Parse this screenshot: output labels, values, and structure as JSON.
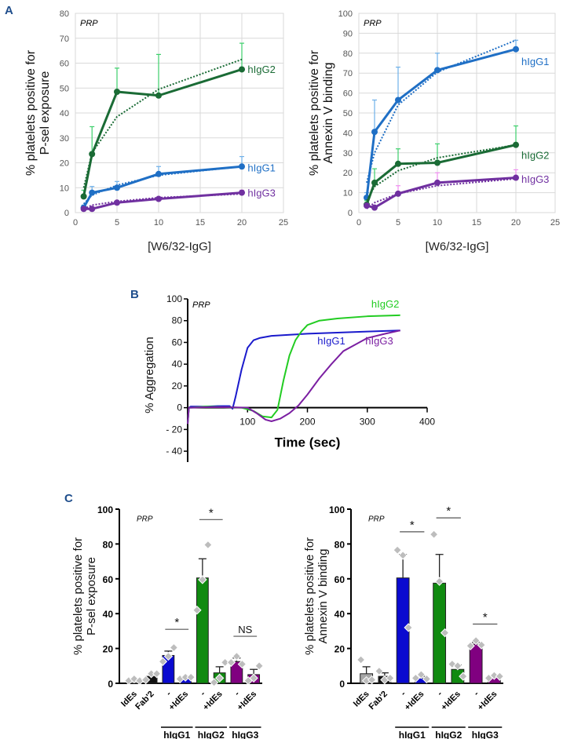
{
  "panels": {
    "A": "A",
    "B": "B",
    "C": "C"
  },
  "colors": {
    "hIgG1": "#1f6fc5",
    "hIgG2": "#1a6b35",
    "hIgG3": "#7030a0",
    "hIgG1_err": "#6fb0e8",
    "hIgG2_err": "#3ccf6b",
    "hIgG3_err": "#f08ef0",
    "agg_hIgG1": "#1a1acc",
    "agg_hIgG2": "#22cc22",
    "agg_hIgG3": "#7b1fa2",
    "bar_IdEs": "#a6a6a6",
    "bar_Fab2": "#111111",
    "bar_hIgG1": "#0a0ad0",
    "bar_hIgG2": "#108a10",
    "bar_hIgG3": "#800080",
    "panel_letter": "#1f4e8c"
  },
  "chart_data": [
    {
      "id": "A-left",
      "type": "line",
      "annotation": "PRP",
      "xlabel": "[W6/32-IgG]",
      "ylabel": "% platelets positive for P-sel exposure",
      "ylabel_lines": [
        "% platelets positive for",
        "P-sel exposure"
      ],
      "xlim": [
        0,
        25
      ],
      "ylim": [
        0,
        80
      ],
      "xticks": [
        0,
        5,
        10,
        15,
        20,
        25
      ],
      "yticks": [
        0,
        10,
        20,
        30,
        40,
        50,
        60,
        70,
        80
      ],
      "grid": true,
      "trendline": "logarithmic (dotted)",
      "x": [
        1,
        2,
        5,
        10,
        20
      ],
      "series": [
        {
          "name": "hIgG2",
          "color_key": "hIgG2",
          "err_key": "hIgG2_err",
          "values": [
            6.5,
            23.5,
            48.5,
            47,
            57.5
          ],
          "err": [
            2.5,
            11,
            9.5,
            16.5,
            10.5
          ],
          "trend": [
            10,
            24,
            38.5,
            49.5,
            61.5
          ]
        },
        {
          "name": "hIgG1",
          "color_key": "hIgG1",
          "err_key": "hIgG1_err",
          "values": [
            2,
            8,
            10,
            15.5,
            18.5
          ],
          "err": [
            1,
            2.5,
            2.5,
            3,
            4
          ],
          "trend": [
            3.5,
            7,
            11,
            15,
            18.5
          ]
        },
        {
          "name": "hIgG3",
          "color_key": "hIgG3",
          "err_key": "hIgG3_err",
          "values": [
            1.5,
            1.5,
            4,
            5.5,
            8
          ],
          "err": [
            0.5,
            0.5,
            0.8,
            0.8,
            1
          ],
          "trend": [
            1.5,
            3,
            4.5,
            6,
            7.5
          ]
        }
      ]
    },
    {
      "id": "A-right",
      "type": "line",
      "annotation": "PRP",
      "xlabel": "[W6/32-IgG]",
      "ylabel": "% platelets positive for Annexin V binding",
      "ylabel_lines": [
        "% platelets positive for",
        "Annexin V binding"
      ],
      "xlim": [
        0,
        25
      ],
      "ylim": [
        0,
        100
      ],
      "xticks": [
        0,
        5,
        10,
        15,
        20,
        25
      ],
      "yticks": [
        0,
        10,
        20,
        30,
        40,
        50,
        60,
        70,
        80,
        90,
        100
      ],
      "grid": true,
      "trendline": "logarithmic (dotted)",
      "x": [
        1,
        2,
        5,
        10,
        20
      ],
      "series": [
        {
          "name": "hIgG1",
          "color_key": "hIgG1",
          "err_key": "hIgG1_err",
          "values": [
            7.5,
            40.5,
            56.5,
            71.5,
            82
          ],
          "err": [
            2.5,
            16,
            16.5,
            8.5,
            4.5
          ],
          "trend": [
            15,
            30,
            54,
            70.5,
            86.5
          ]
        },
        {
          "name": "hIgG2",
          "color_key": "hIgG2",
          "err_key": "hIgG2_err",
          "values": [
            4,
            15,
            24.5,
            25,
            34
          ],
          "err": [
            2,
            7,
            7.5,
            9.5,
            9.5
          ],
          "trend": [
            6,
            13,
            21,
            27.5,
            34
          ]
        },
        {
          "name": "hIgG3",
          "color_key": "hIgG3",
          "err_key": "hIgG3_err",
          "values": [
            3.5,
            2.5,
            9.5,
            15,
            17.5
          ],
          "err": [
            1,
            1,
            4,
            5,
            4
          ],
          "trend": [
            2,
            5,
            9.5,
            13.5,
            17
          ]
        }
      ]
    },
    {
      "id": "B",
      "type": "line",
      "annotation": "PRP",
      "xlabel": "Time (sec)",
      "ylabel": "% Aggregation",
      "xlim": [
        0,
        400
      ],
      "ylim": [
        -50,
        100
      ],
      "xticks": [
        100,
        200,
        300,
        400
      ],
      "yticks": [
        -40,
        -20,
        0,
        20,
        40,
        60,
        80,
        100
      ],
      "ytick_labels": [
        "- 40",
        "- 20",
        "0",
        "20",
        "40",
        "60",
        "80",
        "100"
      ],
      "grid": false,
      "series": [
        {
          "name": "hIgG1",
          "color_key": "agg_hIgG1",
          "x": [
            0,
            2,
            5,
            30,
            50,
            70,
            75,
            80,
            90,
            100,
            110,
            120,
            140,
            170,
            200,
            250,
            300,
            355
          ],
          "values": [
            -15,
            0,
            1,
            1,
            1.5,
            1.5,
            -1,
            10,
            35,
            55,
            62,
            64,
            66,
            67,
            68,
            69,
            70,
            71
          ]
        },
        {
          "name": "hIgG2",
          "color_key": "agg_hIgG2",
          "x": [
            0,
            2,
            5,
            30,
            60,
            90,
            110,
            125,
            140,
            150,
            160,
            170,
            180,
            190,
            200,
            220,
            250,
            300,
            355
          ],
          "values": [
            -15,
            0,
            0,
            1,
            0.5,
            0,
            -3,
            -8,
            -9,
            -2,
            25,
            48,
            62,
            70,
            76,
            80,
            82,
            84,
            85
          ]
        },
        {
          "name": "hIgG3",
          "color_key": "agg_hIgG3",
          "x": [
            0,
            2,
            5,
            30,
            60,
            100,
            115,
            130,
            140,
            155,
            170,
            185,
            200,
            220,
            240,
            260,
            280,
            300,
            330,
            355
          ],
          "values": [
            -15,
            0,
            0,
            0.5,
            0.5,
            0,
            -5,
            -11,
            -12.5,
            -10,
            -5,
            2,
            12,
            27,
            40,
            52,
            58,
            64,
            68,
            71
          ]
        }
      ],
      "labels": [
        {
          "text": "hIgG2",
          "color_key": "agg_hIgG2",
          "x": 330,
          "y": 92
        },
        {
          "text": "hIgG1",
          "color_key": "agg_hIgG1",
          "x": 240,
          "y": 58
        },
        {
          "text": "hIgG3",
          "color_key": "agg_hIgG3",
          "x": 320,
          "y": 58
        }
      ]
    },
    {
      "id": "C-left",
      "type": "bar",
      "annotation": "PRP",
      "ylabel": "% platelets positive for P-sel exposure",
      "ylabel_lines": [
        "% platelets positive for",
        "P-sel exposure"
      ],
      "ylim": [
        0,
        100
      ],
      "yticks": [
        0,
        20,
        40,
        60,
        80,
        100
      ],
      "categories": [
        "IdEs",
        "Fab'2",
        "-",
        "+IdEs",
        "-",
        "+IdEs",
        "-",
        "+IdEs"
      ],
      "groups": [
        {
          "label": "hIgG1",
          "from": 2,
          "to": 3
        },
        {
          "label": "hIgG2",
          "from": 4,
          "to": 5
        },
        {
          "label": "hIgG3",
          "from": 6,
          "to": 7
        }
      ],
      "bar_color_keys": [
        "bar_IdEs",
        "bar_Fab2",
        "bar_hIgG1",
        "bar_hIgG1",
        "bar_hIgG2",
        "bar_hIgG2",
        "bar_hIgG3",
        "bar_hIgG3"
      ],
      "values": [
        2,
        4,
        16,
        3,
        60.5,
        6,
        12.5,
        5
      ],
      "err": [
        0,
        1.5,
        2.5,
        0.5,
        11,
        3.5,
        2,
        3
      ],
      "points": [
        [
          1.5,
          2.5,
          1.5
        ],
        [
          2,
          5.5,
          5.5
        ],
        [
          12.5,
          15.5,
          20.5
        ],
        [
          2.5,
          3.5,
          3.5
        ],
        [
          42,
          59.5,
          79.5
        ],
        [
          0.5,
          3,
          12
        ],
        [
          12,
          15.5,
          11
        ],
        [
          1.5,
          3,
          10
        ]
      ],
      "significance": [
        {
          "from": 2,
          "to": 3,
          "text": "*",
          "y": 31
        },
        {
          "from": 4,
          "to": 5,
          "text": "*",
          "y": 94
        },
        {
          "from": 6,
          "to": 7,
          "text": "NS",
          "y": 27
        }
      ]
    },
    {
      "id": "C-right",
      "type": "bar",
      "annotation": "PRP",
      "ylabel": "% platelets positive for Annexin V binding",
      "ylabel_lines": [
        "% platelets positive for",
        "Annexin V binding"
      ],
      "ylim": [
        0,
        100
      ],
      "yticks": [
        0,
        20,
        40,
        60,
        80,
        100
      ],
      "categories": [
        "IdEs",
        "Fab'2",
        "-",
        "+IdEs",
        "-",
        "+IdEs",
        "-",
        "+IdEs"
      ],
      "groups": [
        {
          "label": "hIgG1",
          "from": 2,
          "to": 3
        },
        {
          "label": "hIgG2",
          "from": 4,
          "to": 5
        },
        {
          "label": "hIgG3",
          "from": 6,
          "to": 7
        }
      ],
      "bar_color_keys": [
        "bar_IdEs",
        "bar_Fab2",
        "bar_hIgG1",
        "bar_hIgG1",
        "bar_hIgG2",
        "bar_hIgG2",
        "bar_hIgG3",
        "bar_hIgG3"
      ],
      "values": [
        5.5,
        4,
        60.5,
        3,
        57.5,
        8,
        22.5,
        3.5
      ],
      "err": [
        4,
        2,
        13.5,
        1,
        16.5,
        2.5,
        1,
        1
      ],
      "points": [
        [
          13.5,
          1.5,
          2
        ],
        [
          7,
          2,
          3
        ],
        [
          76.5,
          73.5,
          32
        ],
        [
          3,
          5,
          2.5
        ],
        [
          85.5,
          58.5,
          29
        ],
        [
          11,
          10,
          4
        ],
        [
          21.5,
          24.5,
          22
        ],
        [
          3,
          4.5,
          4
        ]
      ],
      "significance": [
        {
          "from": 2,
          "to": 3,
          "text": "*",
          "y": 87
        },
        {
          "from": 4,
          "to": 5,
          "text": "*",
          "y": 95
        },
        {
          "from": 6,
          "to": 7,
          "text": "*",
          "y": 34
        }
      ]
    }
  ]
}
